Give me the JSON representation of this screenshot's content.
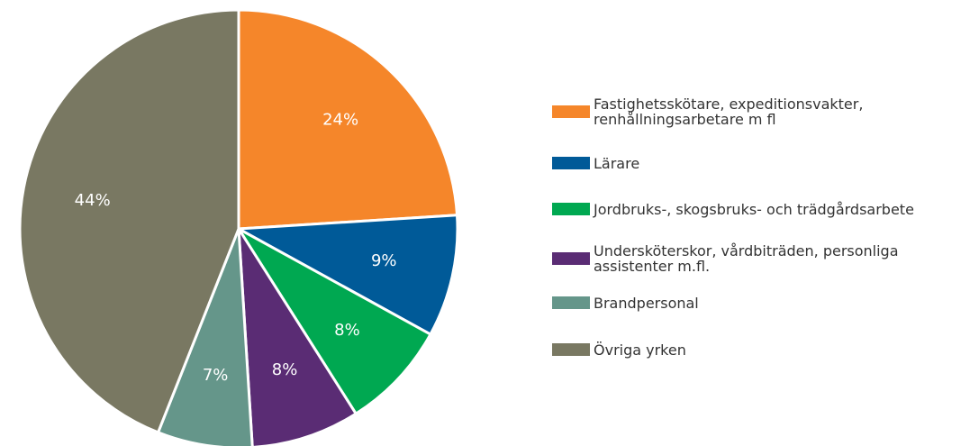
{
  "chart_data": {
    "type": "pie",
    "categories": [
      "Fastighetsskötare, expeditionsvakter,\nrenhållningsarbetare m fl",
      "Lärare",
      "Jordbruks-, skogsbruks- och trädgårdsarbete",
      "Undersköterskor, vårdbiträden, personliga\nassistenter m.fl.",
      "Brandpersonal",
      "Övriga yrken"
    ],
    "values": [
      24,
      9,
      8,
      8,
      7,
      44
    ],
    "value_labels": [
      "24%",
      "9%",
      "8%",
      "8%",
      "7%",
      "44%"
    ],
    "colors": [
      "#f5862a",
      "#005a98",
      "#00a851",
      "#5a2c74",
      "#65968a",
      "#797862"
    ],
    "legend": "right"
  }
}
